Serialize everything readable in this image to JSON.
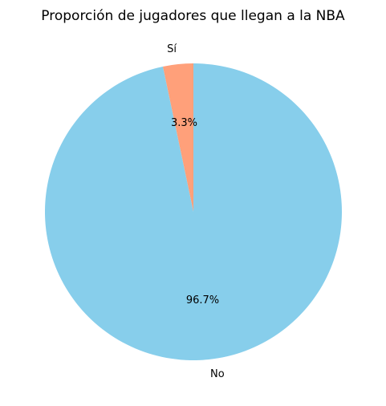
{
  "chart_data": {
    "type": "pie",
    "title": "Proporción de jugadores que llegan a la NBA",
    "categories": [
      "Sí",
      "No"
    ],
    "values": [
      3.3,
      96.7
    ],
    "data_labels": [
      "3.3%",
      "96.7%"
    ],
    "colors": [
      "#ffa07a",
      "#87ceeb"
    ],
    "start_angle_deg": 90,
    "direction": "counterclockwise"
  }
}
